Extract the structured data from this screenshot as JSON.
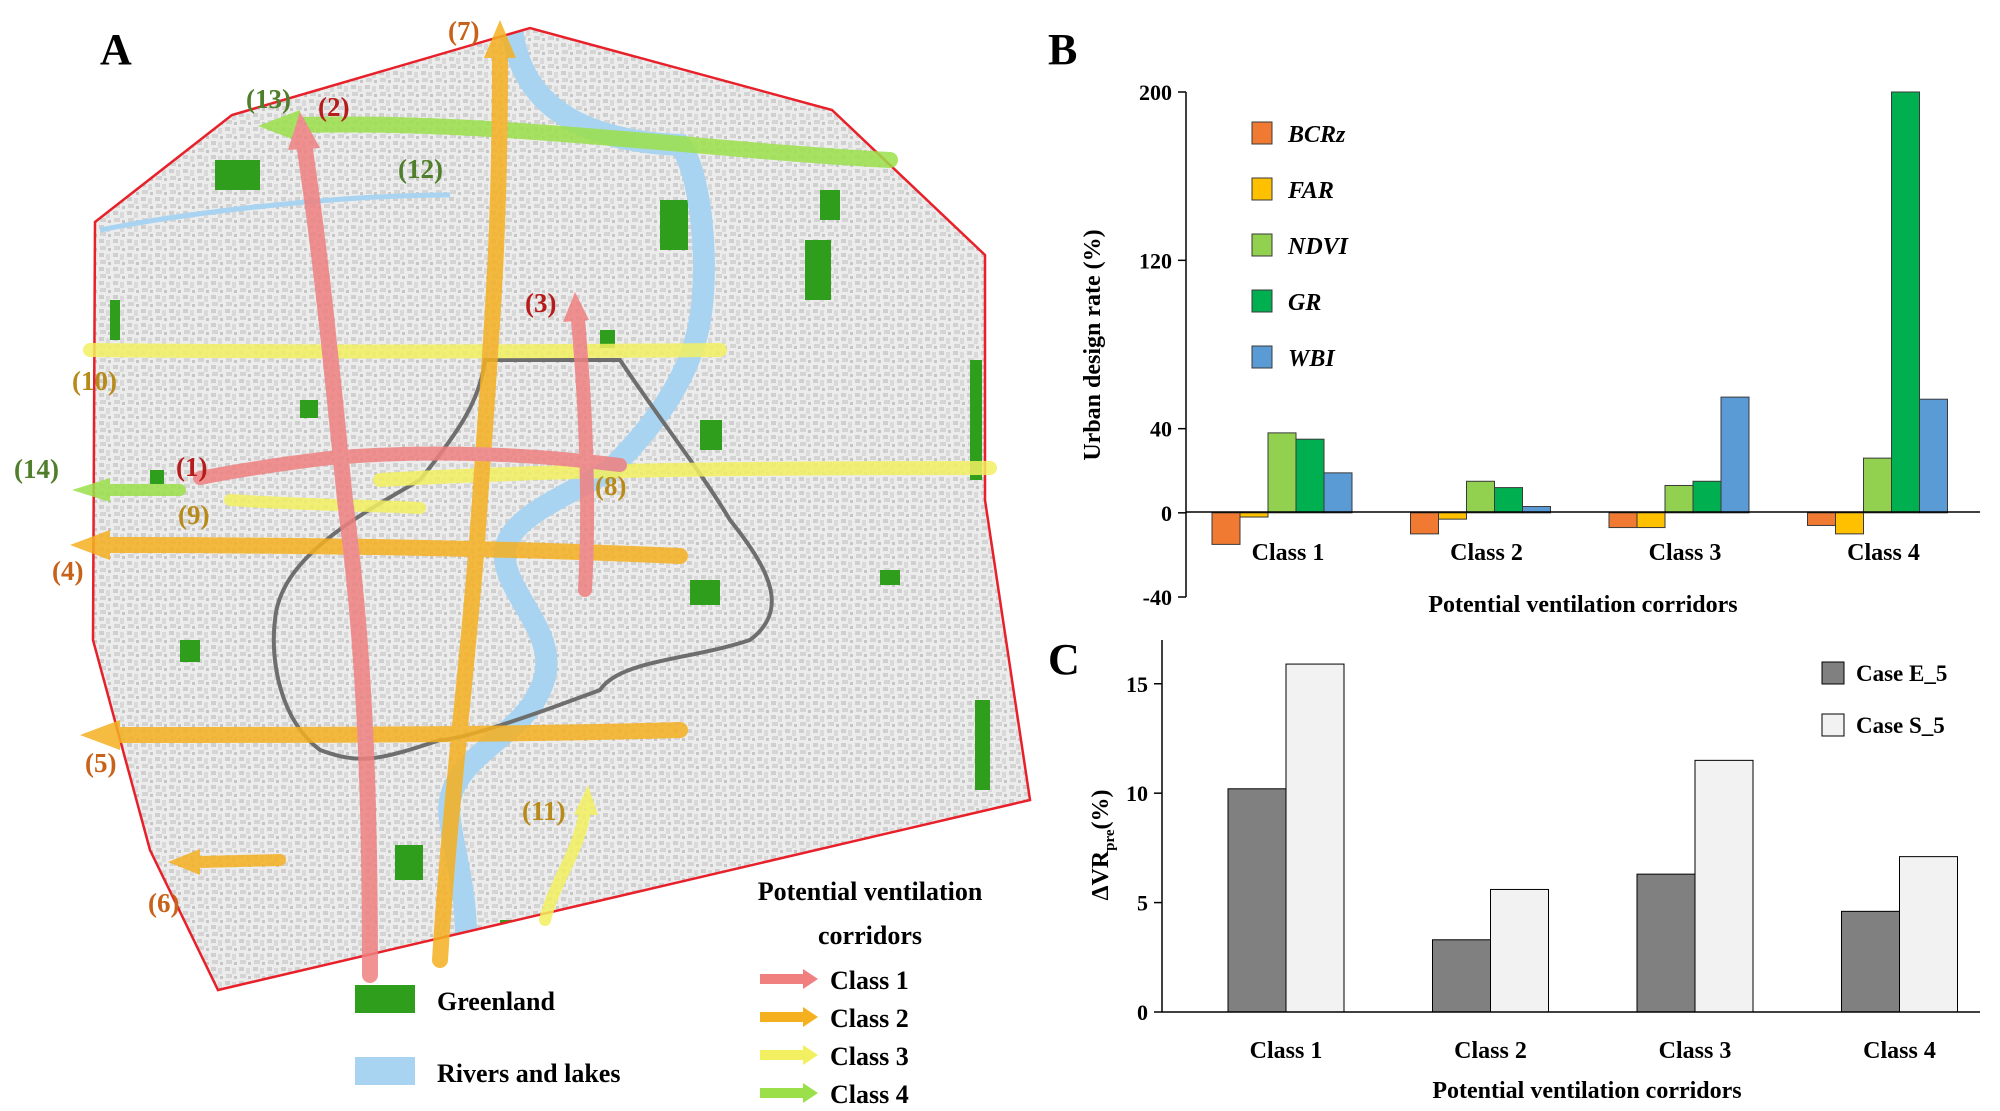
{
  "panels": {
    "a": "A",
    "b": "B",
    "c": "C"
  },
  "colors": {
    "boundary": "#e8202a",
    "greenland": "#2f9e1c",
    "rivers": "#a8d4f2",
    "ring_road": "#6e6e6e",
    "class1": "#f08080",
    "class2": "#f5b020",
    "class3": "#f2f060",
    "class4": "#9be04a",
    "label_red": "#b71c1c",
    "label_orange": "#c8621a",
    "label_gold": "#b88a1a",
    "label_green": "#4f7f2c"
  },
  "map": {
    "corridor_labels": [
      {
        "text": "(1)",
        "class": 1
      },
      {
        "text": "(2)",
        "class": 1
      },
      {
        "text": "(3)",
        "class": 1
      },
      {
        "text": "(4)",
        "class": 2
      },
      {
        "text": "(5)",
        "class": 2
      },
      {
        "text": "(6)",
        "class": 2
      },
      {
        "text": "(7)",
        "class": 2
      },
      {
        "text": "(8)",
        "class": 3
      },
      {
        "text": "(9)",
        "class": 3
      },
      {
        "text": "(10)",
        "class": 3
      },
      {
        "text": "(11)",
        "class": 3
      },
      {
        "text": "(12)",
        "class": 4
      },
      {
        "text": "(13)",
        "class": 4
      },
      {
        "text": "(14)",
        "class": 4
      }
    ],
    "legend": {
      "greenland": "Greenland",
      "rivers": "Rivers and lakes",
      "corridor_title_line1": "Potential ventilation",
      "corridor_title_line2": "corridors",
      "classes": [
        "Class 1",
        "Class 2",
        "Class 3",
        "Class 4"
      ]
    }
  },
  "chart_data": [
    {
      "panel": "B",
      "type": "bar",
      "categories": [
        "Class 1",
        "Class 2",
        "Class 3",
        "Class 4"
      ],
      "series": [
        {
          "name": "BCRz",
          "color": "#f07a32",
          "values": [
            -15,
            -10,
            -7,
            -6
          ]
        },
        {
          "name": "FAR",
          "color": "#ffc000",
          "values": [
            -2,
            -3,
            -7,
            -10
          ]
        },
        {
          "name": "NDVI",
          "color": "#92d050",
          "values": [
            38,
            15,
            13,
            26
          ]
        },
        {
          "name": "GR",
          "color": "#00b050",
          "values": [
            35,
            12,
            15,
            200
          ]
        },
        {
          "name": "WBI",
          "color": "#5b9bd5",
          "values": [
            19,
            3,
            55,
            54
          ]
        }
      ],
      "xlabel": "Potential ventilation corridors",
      "ylabel": "Urban design rate (%)",
      "yticks": [
        200,
        120,
        40,
        0,
        -40
      ],
      "ylim": [
        -40,
        200
      ],
      "legend_position": "top-left"
    },
    {
      "panel": "C",
      "type": "bar",
      "categories": [
        "Class 1",
        "Class 2",
        "Class 3",
        "Class 4"
      ],
      "series": [
        {
          "name": "Case E_5",
          "color": "#808080",
          "values": [
            10.2,
            3.3,
            6.3,
            4.6
          ]
        },
        {
          "name": "Case S_5",
          "color": "#f2f2f2",
          "values": [
            15.9,
            5.6,
            11.5,
            7.1
          ]
        }
      ],
      "xlabel": "Potential ventilation corridors",
      "ylabel_main": "ΔVR",
      "ylabel_sub": "pre",
      "ylabel_suffix": "(%)",
      "yticks": [
        15,
        10,
        5,
        0
      ],
      "ylim": [
        0,
        17
      ],
      "legend_position": "top-right"
    }
  ]
}
